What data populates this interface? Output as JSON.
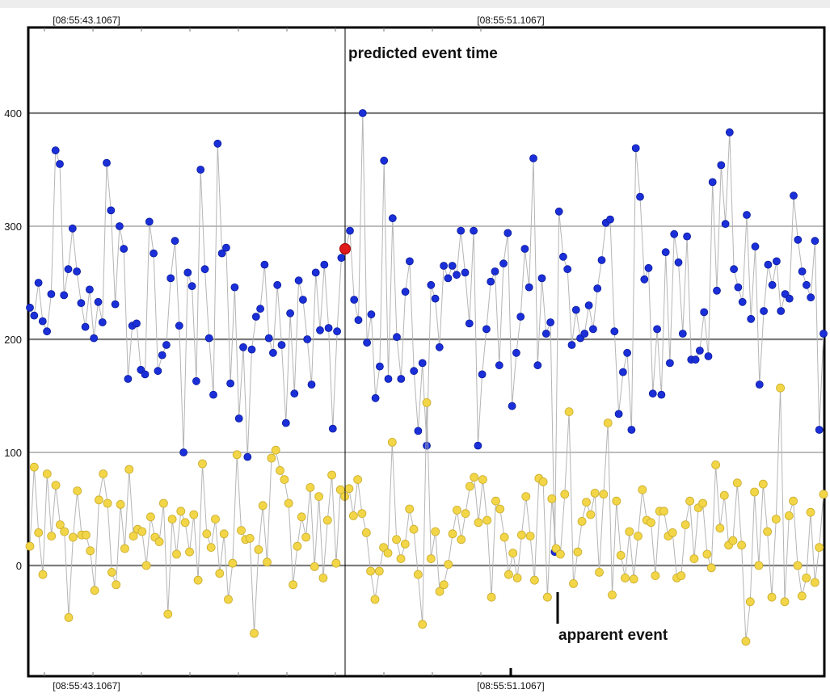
{
  "chart_data": {
    "type": "scatter",
    "title": "",
    "xlabel": "",
    "ylabel": "",
    "x_tick_labels": [
      "[08:55:43.1067]",
      "[08:55:51.1067]"
    ],
    "y_tick_labels": [
      "0",
      "100",
      "200",
      "300",
      "400"
    ],
    "ylim": [
      -100,
      475
    ],
    "grid": true,
    "annotations": {
      "predicted_event_label": "predicted event time",
      "apparent_event_label": "apparent event"
    },
    "colors": {
      "blue_series": "#1a2fd8",
      "yellow_series": "#f2d648",
      "marker": "#e01a1a",
      "connector": "#b5b5b5"
    },
    "predicted_marker_value": 280,
    "series": [
      {
        "values": [
          228,
          221,
          250,
          216,
          207,
          240,
          367,
          355,
          239,
          262,
          298,
          260,
          232,
          211,
          244,
          201,
          233,
          215,
          356,
          314,
          231,
          300,
          280,
          165,
          212,
          214,
          173,
          169,
          304,
          276,
          172,
          186,
          195,
          254,
          287,
          212,
          100,
          259,
          247,
          163,
          350,
          262,
          201,
          151,
          373,
          276,
          281,
          161,
          246,
          130,
          193,
          96,
          191,
          220,
          227,
          266,
          201,
          188,
          248,
          195,
          126,
          223,
          152,
          252,
          235,
          200,
          160,
          259,
          208,
          266,
          210,
          121,
          207,
          272,
          280,
          296,
          235,
          217,
          400,
          197,
          222,
          148,
          176,
          358,
          165,
          307,
          202,
          165,
          242,
          269,
          172,
          119,
          179,
          106,
          248,
          236,
          193,
          265,
          254,
          265,
          257,
          296,
          259,
          214,
          296,
          106,
          169,
          209,
          251,
          260,
          177,
          267,
          294,
          141,
          188,
          220,
          280,
          246,
          360,
          177,
          254,
          205,
          215,
          12,
          313,
          273,
          262,
          195,
          226,
          201,
          205,
          230,
          209,
          245,
          270,
          303,
          306,
          207,
          134,
          171,
          188,
          120,
          369,
          326,
          253,
          263,
          152,
          209,
          151,
          277,
          179,
          293,
          268,
          205,
          291,
          182,
          182,
          190,
          224,
          185,
          339,
          243,
          354,
          302,
          383,
          262,
          246,
          233,
          310,
          218,
          282,
          160,
          225,
          266,
          248,
          269,
          225,
          240,
          236,
          327,
          288,
          260,
          248,
          237,
          287,
          120,
          205
        ]
      },
      {
        "values": [
          17,
          87,
          29,
          -8,
          81,
          26,
          71,
          36,
          30,
          -46,
          25,
          66,
          27,
          27,
          13,
          -22,
          58,
          81,
          55,
          -6,
          -17,
          54,
          15,
          85,
          26,
          32,
          30,
          0,
          43,
          25,
          21,
          55,
          -43,
          41,
          10,
          48,
          38,
          12,
          45,
          -13,
          90,
          28,
          16,
          41,
          -7,
          28,
          -30,
          2,
          98,
          31,
          23,
          24,
          -60,
          14,
          53,
          3,
          95,
          102,
          84,
          76,
          55,
          -17,
          17,
          43,
          25,
          69,
          -1,
          61,
          -11,
          40,
          80,
          2,
          67,
          61,
          68,
          44,
          76,
          46,
          29,
          -5,
          -30,
          -5,
          16,
          11,
          109,
          23,
          6,
          19,
          50,
          32,
          -8,
          -52,
          144,
          6,
          30,
          -23,
          -17,
          1,
          28,
          49,
          23,
          46,
          70,
          78,
          38,
          76,
          40,
          -28,
          57,
          50,
          25,
          -8,
          11,
          -11,
          27,
          61,
          26,
          -13,
          77,
          74,
          -28,
          59,
          15,
          10,
          63,
          136,
          -16,
          12,
          39,
          56,
          45,
          64,
          -6,
          63,
          126,
          -26,
          57,
          9,
          -11,
          30,
          -12,
          26,
          67,
          40,
          38,
          -9,
          48,
          48,
          26,
          29,
          -11,
          -9,
          36,
          57,
          6,
          51,
          55,
          10,
          -2,
          89,
          33,
          62,
          18,
          22,
          73,
          18,
          -67,
          -32,
          65,
          0,
          72,
          30,
          -28,
          41,
          157,
          -32,
          44,
          57,
          0,
          -27,
          -11,
          47,
          -15,
          16,
          63
        ]
      }
    ]
  }
}
